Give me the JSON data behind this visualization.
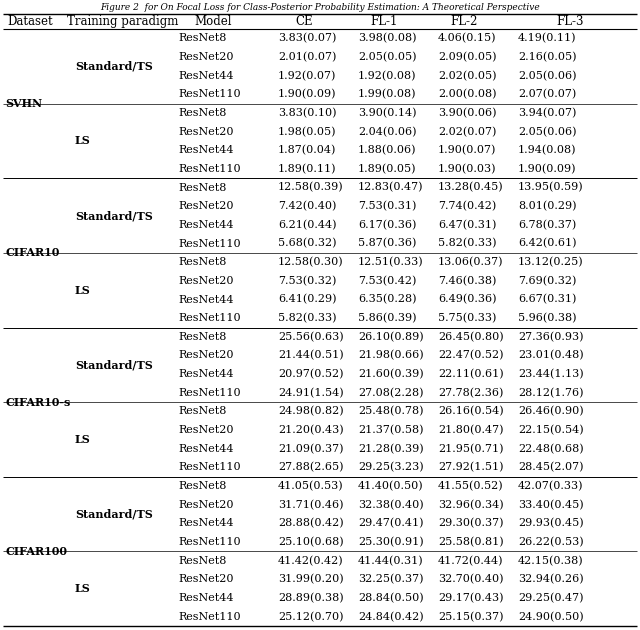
{
  "columns": [
    "Dataset",
    "Training paradigm",
    "Model",
    "CE",
    "FL-1",
    "FL-2",
    "FL-3"
  ],
  "rows": [
    [
      "SVHN",
      "Standard/TS",
      "ResNet8",
      "3.83(0.07)",
      "3.98(0.08)",
      "4.06(0.15)",
      "4.19(0.11)"
    ],
    [
      "SVHN",
      "Standard/TS",
      "ResNet20",
      "2.01(0.07)",
      "2.05(0.05)",
      "2.09(0.05)",
      "2.16(0.05)"
    ],
    [
      "SVHN",
      "Standard/TS",
      "ResNet44",
      "1.92(0.07)",
      "1.92(0.08)",
      "2.02(0.05)",
      "2.05(0.06)"
    ],
    [
      "SVHN",
      "Standard/TS",
      "ResNet110",
      "1.90(0.09)",
      "1.99(0.08)",
      "2.00(0.08)",
      "2.07(0.07)"
    ],
    [
      "SVHN",
      "LS",
      "ResNet8",
      "3.83(0.10)",
      "3.90(0.14)",
      "3.90(0.06)",
      "3.94(0.07)"
    ],
    [
      "SVHN",
      "LS",
      "ResNet20",
      "1.98(0.05)",
      "2.04(0.06)",
      "2.02(0.07)",
      "2.05(0.06)"
    ],
    [
      "SVHN",
      "LS",
      "ResNet44",
      "1.87(0.04)",
      "1.88(0.06)",
      "1.90(0.07)",
      "1.94(0.08)"
    ],
    [
      "SVHN",
      "LS",
      "ResNet110",
      "1.89(0.11)",
      "1.89(0.05)",
      "1.90(0.03)",
      "1.90(0.09)"
    ],
    [
      "CIFAR10",
      "Standard/TS",
      "ResNet8",
      "12.58(0.39)",
      "12.83(0.47)",
      "13.28(0.45)",
      "13.95(0.59)"
    ],
    [
      "CIFAR10",
      "Standard/TS",
      "ResNet20",
      "7.42(0.40)",
      "7.53(0.31)",
      "7.74(0.42)",
      "8.01(0.29)"
    ],
    [
      "CIFAR10",
      "Standard/TS",
      "ResNet44",
      "6.21(0.44)",
      "6.17(0.36)",
      "6.47(0.31)",
      "6.78(0.37)"
    ],
    [
      "CIFAR10",
      "Standard/TS",
      "ResNet110",
      "5.68(0.32)",
      "5.87(0.36)",
      "5.82(0.33)",
      "6.42(0.61)"
    ],
    [
      "CIFAR10",
      "LS",
      "ResNet8",
      "12.58(0.30)",
      "12.51(0.33)",
      "13.06(0.37)",
      "13.12(0.25)"
    ],
    [
      "CIFAR10",
      "LS",
      "ResNet20",
      "7.53(0.32)",
      "7.53(0.42)",
      "7.46(0.38)",
      "7.69(0.32)"
    ],
    [
      "CIFAR10",
      "LS",
      "ResNet44",
      "6.41(0.29)",
      "6.35(0.28)",
      "6.49(0.36)",
      "6.67(0.31)"
    ],
    [
      "CIFAR10",
      "LS",
      "ResNet110",
      "5.82(0.33)",
      "5.86(0.39)",
      "5.75(0.33)",
      "5.96(0.38)"
    ],
    [
      "CIFAR10-s",
      "Standard/TS",
      "ResNet8",
      "25.56(0.63)",
      "26.10(0.89)",
      "26.45(0.80)",
      "27.36(0.93)"
    ],
    [
      "CIFAR10-s",
      "Standard/TS",
      "ResNet20",
      "21.44(0.51)",
      "21.98(0.66)",
      "22.47(0.52)",
      "23.01(0.48)"
    ],
    [
      "CIFAR10-s",
      "Standard/TS",
      "ResNet44",
      "20.97(0.52)",
      "21.60(0.39)",
      "22.11(0.61)",
      "23.44(1.13)"
    ],
    [
      "CIFAR10-s",
      "Standard/TS",
      "ResNet110",
      "24.91(1.54)",
      "27.08(2.28)",
      "27.78(2.36)",
      "28.12(1.76)"
    ],
    [
      "CIFAR10-s",
      "LS",
      "ResNet8",
      "24.98(0.82)",
      "25.48(0.78)",
      "26.16(0.54)",
      "26.46(0.90)"
    ],
    [
      "CIFAR10-s",
      "LS",
      "ResNet20",
      "21.20(0.43)",
      "21.37(0.58)",
      "21.80(0.47)",
      "22.15(0.54)"
    ],
    [
      "CIFAR10-s",
      "LS",
      "ResNet44",
      "21.09(0.37)",
      "21.28(0.39)",
      "21.95(0.71)",
      "22.48(0.68)"
    ],
    [
      "CIFAR10-s",
      "LS",
      "ResNet110",
      "27.88(2.65)",
      "29.25(3.23)",
      "27.92(1.51)",
      "28.45(2.07)"
    ],
    [
      "CIFAR100",
      "Standard/TS",
      "ResNet8",
      "41.05(0.53)",
      "41.40(0.50)",
      "41.55(0.52)",
      "42.07(0.33)"
    ],
    [
      "CIFAR100",
      "Standard/TS",
      "ResNet20",
      "31.71(0.46)",
      "32.38(0.40)",
      "32.96(0.34)",
      "33.40(0.45)"
    ],
    [
      "CIFAR100",
      "Standard/TS",
      "ResNet44",
      "28.88(0.42)",
      "29.47(0.41)",
      "29.30(0.37)",
      "29.93(0.45)"
    ],
    [
      "CIFAR100",
      "Standard/TS",
      "ResNet110",
      "25.10(0.68)",
      "25.30(0.91)",
      "25.58(0.81)",
      "26.22(0.53)"
    ],
    [
      "CIFAR100",
      "LS",
      "ResNet8",
      "41.42(0.42)",
      "41.44(0.31)",
      "41.72(0.44)",
      "42.15(0.38)"
    ],
    [
      "CIFAR100",
      "LS",
      "ResNet20",
      "31.99(0.20)",
      "32.25(0.37)",
      "32.70(0.40)",
      "32.94(0.26)"
    ],
    [
      "CIFAR100",
      "LS",
      "ResNet44",
      "28.89(0.38)",
      "28.84(0.50)",
      "29.17(0.43)",
      "29.25(0.47)"
    ],
    [
      "CIFAR100",
      "LS",
      "ResNet110",
      "25.12(0.70)",
      "24.84(0.42)",
      "25.15(0.37)",
      "24.90(0.50)"
    ]
  ],
  "dataset_info": [
    [
      "SVHN",
      0,
      7
    ],
    [
      "CIFAR10",
      8,
      15
    ],
    [
      "CIFAR10-s",
      16,
      23
    ],
    [
      "CIFAR100",
      24,
      31
    ]
  ],
  "paradigm_info": [
    [
      "Standard/TS",
      0,
      3
    ],
    [
      "LS",
      4,
      7
    ],
    [
      "Standard/TS",
      8,
      11
    ],
    [
      "LS",
      12,
      15
    ],
    [
      "Standard/TS",
      16,
      19
    ],
    [
      "LS",
      20,
      23
    ],
    [
      "Standard/TS",
      24,
      27
    ],
    [
      "LS",
      28,
      31
    ]
  ],
  "bg_color": "#ffffff",
  "text_color": "#000000",
  "header_fontsize": 8.5,
  "body_fontsize": 8.0,
  "fig_width": 6.4,
  "fig_height": 6.3,
  "dpi": 100
}
